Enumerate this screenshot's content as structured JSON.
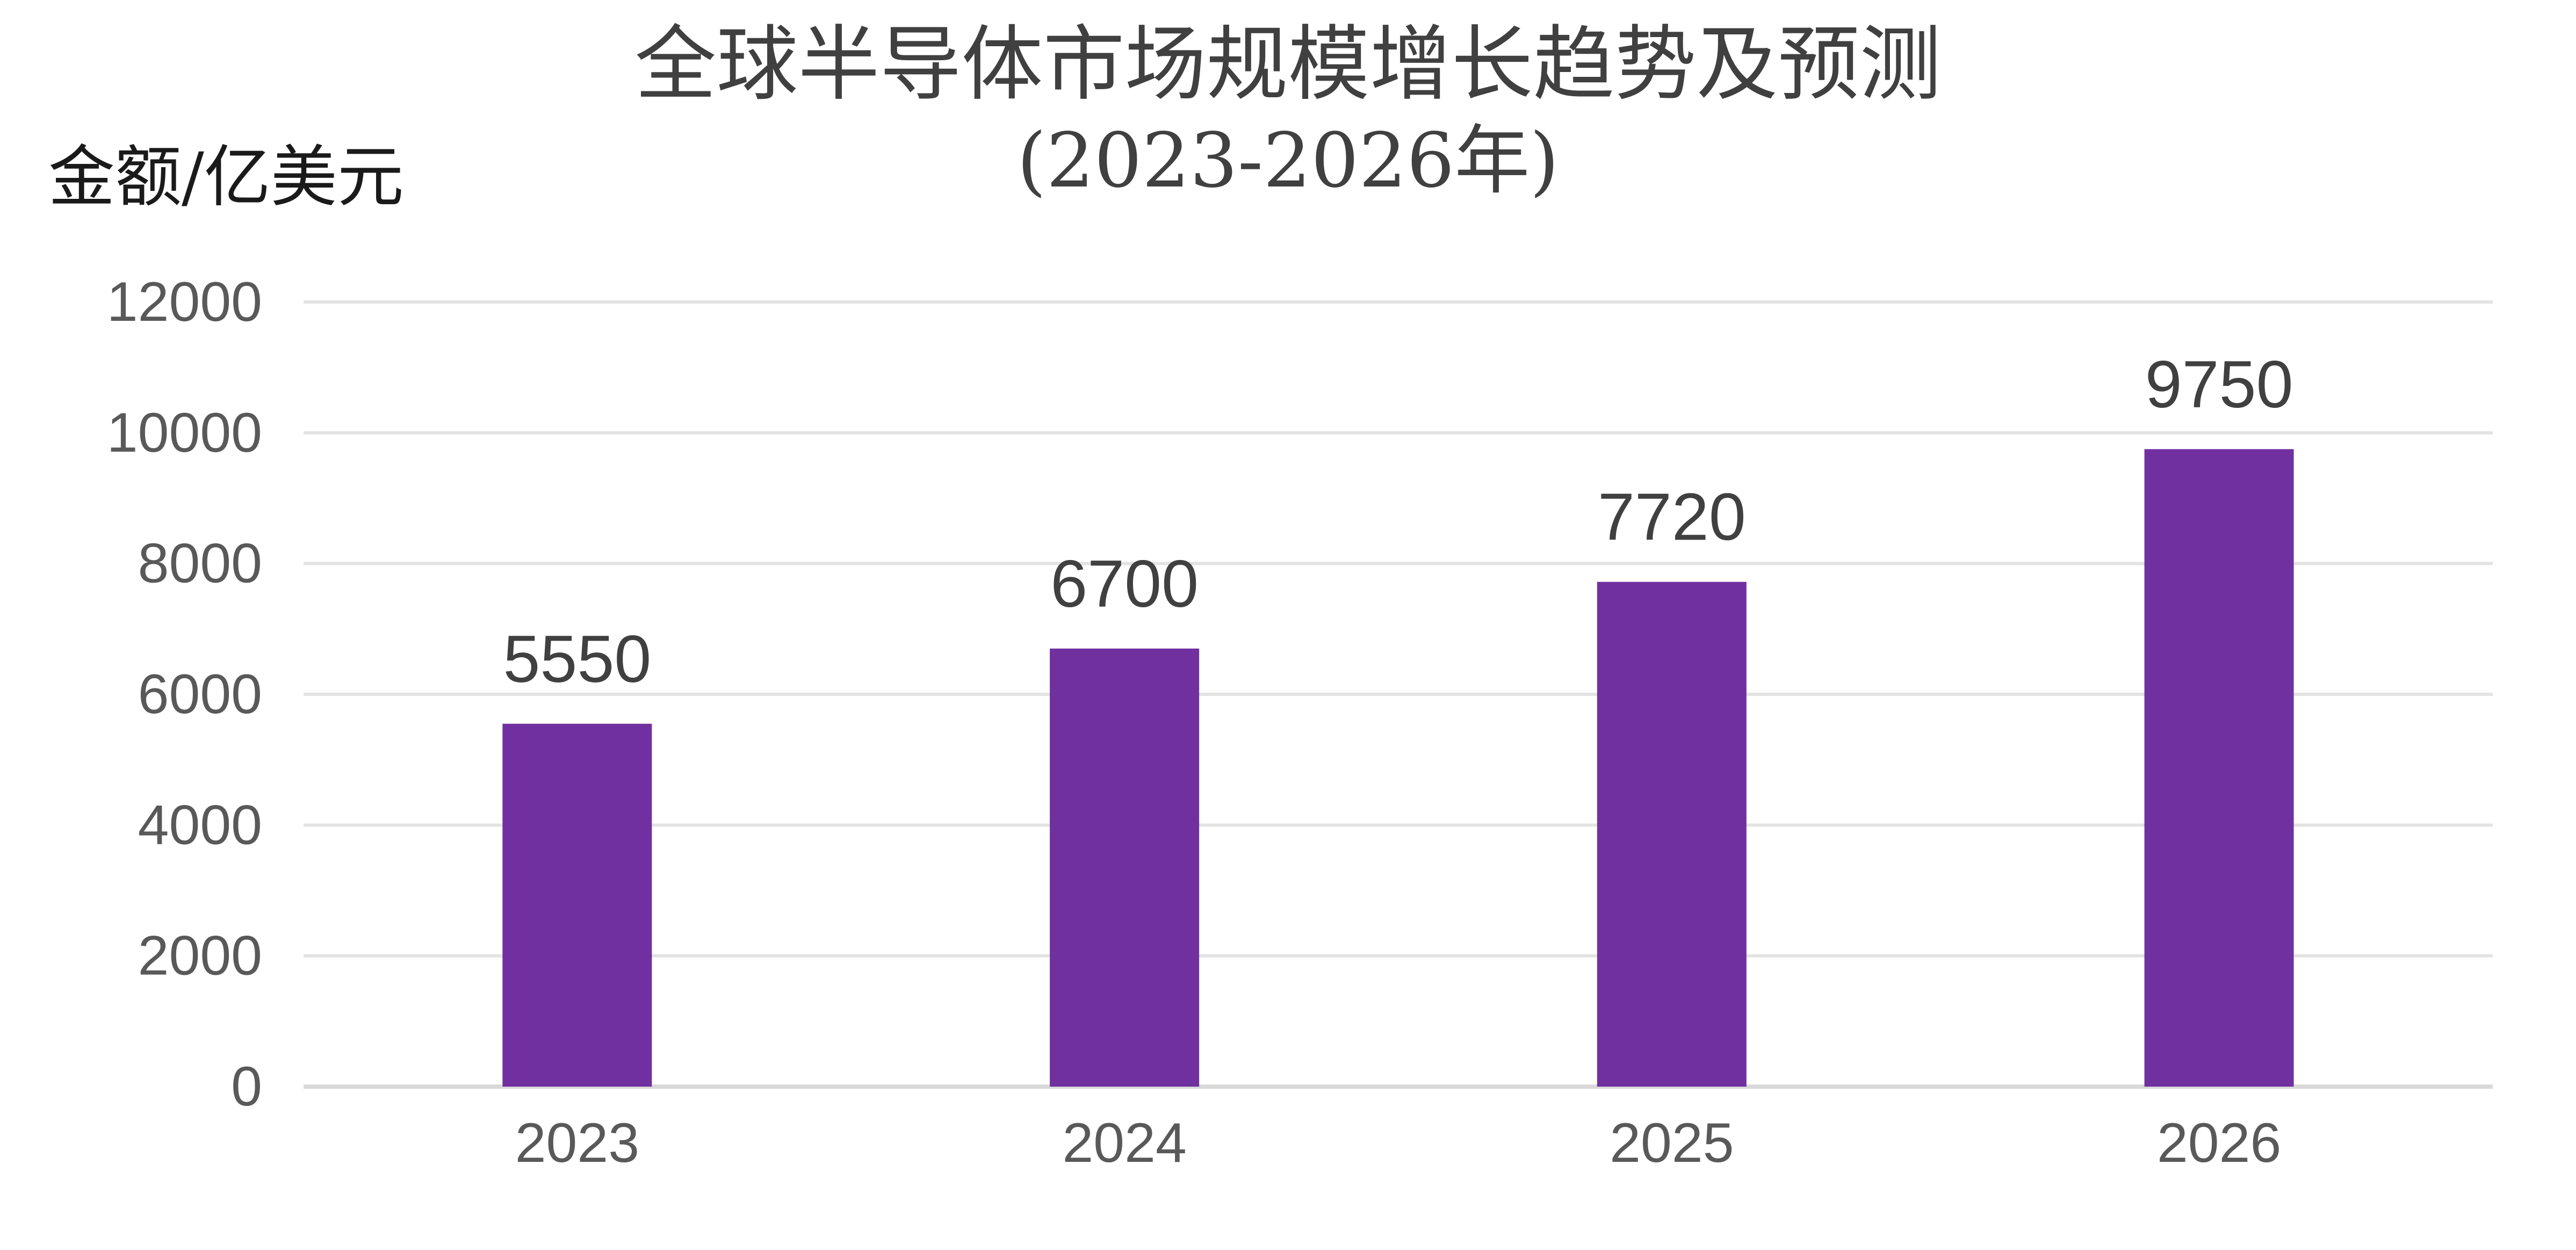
{
  "chart_data": {
    "type": "bar",
    "title": "全球半导体市场规模增长趋势及预测",
    "subtitle": "(2023-2026年)",
    "ylabel": "金额/亿美元",
    "xlabel": "",
    "categories": [
      "2023",
      "2024",
      "2025",
      "2026"
    ],
    "values": [
      5550,
      6700,
      7720,
      9750
    ],
    "data_labels": [
      "5550",
      "6700",
      "7720",
      "9750"
    ],
    "ylim": [
      0,
      12000
    ],
    "yticks": [
      0,
      2000,
      4000,
      6000,
      8000,
      10000,
      12000
    ],
    "ytick_labels": [
      "0",
      "2000",
      "4000",
      "6000",
      "8000",
      "10000",
      "12000"
    ],
    "grid": true,
    "legend": "none",
    "colors": {
      "bar": "#7030a0",
      "grid": "#e3e3e3",
      "baseline": "#d9d9d9"
    }
  }
}
